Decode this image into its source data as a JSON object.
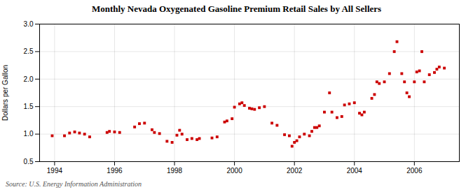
{
  "chart_data": {
    "type": "scatter",
    "title": "Monthly Nevada Oxygenated Gasoline Premium Retail Sales by All Sellers",
    "ylabel": "Dollars per Gallon",
    "annotations": [
      "Source: U.S. Energy Information Administration"
    ],
    "color": "#cc0000",
    "marker": "square",
    "grid": true,
    "xlim": [
      1993.5,
      2007.5
    ],
    "xticks": [
      1994,
      1996,
      1998,
      2000,
      2002,
      2004,
      2006
    ],
    "ylim": [
      0.5,
      3.0
    ],
    "yticks": [
      0.5,
      {
        "value": 1.0,
        "label": "1.0"
      },
      1.5,
      {
        "value": 2.0,
        "label": "2.0"
      },
      2.5,
      {
        "value": 3.0,
        "label": "3.0"
      }
    ],
    "x": [
      1993.92,
      1994.33,
      1994.5,
      1994.67,
      1994.83,
      1995.0,
      1995.17,
      1995.75,
      1995.83,
      1996.0,
      1996.17,
      1996.67,
      1996.83,
      1997.0,
      1997.25,
      1997.33,
      1997.5,
      1997.75,
      1997.92,
      1998.08,
      1998.17,
      1998.25,
      1998.42,
      1998.58,
      1998.75,
      1998.83,
      1999.25,
      1999.42,
      1999.67,
      1999.75,
      1999.92,
      2000.0,
      2000.17,
      2000.25,
      2000.33,
      2000.5,
      2000.58,
      2000.67,
      2000.83,
      2001.0,
      2001.25,
      2001.42,
      2001.67,
      2001.83,
      2001.92,
      2002.0,
      2002.08,
      2002.17,
      2002.33,
      2002.5,
      2002.58,
      2002.67,
      2002.75,
      2002.83,
      2003.0,
      2003.17,
      2003.25,
      2003.42,
      2003.58,
      2003.67,
      2003.83,
      2004.0,
      2004.17,
      2004.25,
      2004.33,
      2004.58,
      2004.67,
      2004.75,
      2004.83,
      2005.0,
      2005.17,
      2005.33,
      2005.42,
      2005.58,
      2005.67,
      2005.75,
      2005.83,
      2006.0,
      2006.08,
      2006.17,
      2006.25,
      2006.33,
      2006.5,
      2006.67,
      2006.75,
      2006.83,
      2007.0
    ],
    "values": [
      0.97,
      0.97,
      1.02,
      1.04,
      1.02,
      1.0,
      0.95,
      1.03,
      1.05,
      1.04,
      1.03,
      1.13,
      1.19,
      1.2,
      1.08,
      1.03,
      1.01,
      0.87,
      0.85,
      0.98,
      1.07,
      1.0,
      0.9,
      0.92,
      0.9,
      0.92,
      0.93,
      0.95,
      1.22,
      1.24,
      1.28,
      1.49,
      1.55,
      1.57,
      1.52,
      1.47,
      1.46,
      1.45,
      1.48,
      1.5,
      1.2,
      1.16,
      0.99,
      0.97,
      0.78,
      0.85,
      0.88,
      0.95,
      1.0,
      0.97,
      1.05,
      1.12,
      1.12,
      1.15,
      1.4,
      1.75,
      1.4,
      1.3,
      1.32,
      1.53,
      1.55,
      1.57,
      1.38,
      1.35,
      1.4,
      1.65,
      1.72,
      1.95,
      1.92,
      1.95,
      2.1,
      2.5,
      2.68,
      2.1,
      1.95,
      1.75,
      1.68,
      1.95,
      2.13,
      2.15,
      2.5,
      1.95,
      2.08,
      2.12,
      2.18,
      2.22,
      2.2
    ]
  }
}
